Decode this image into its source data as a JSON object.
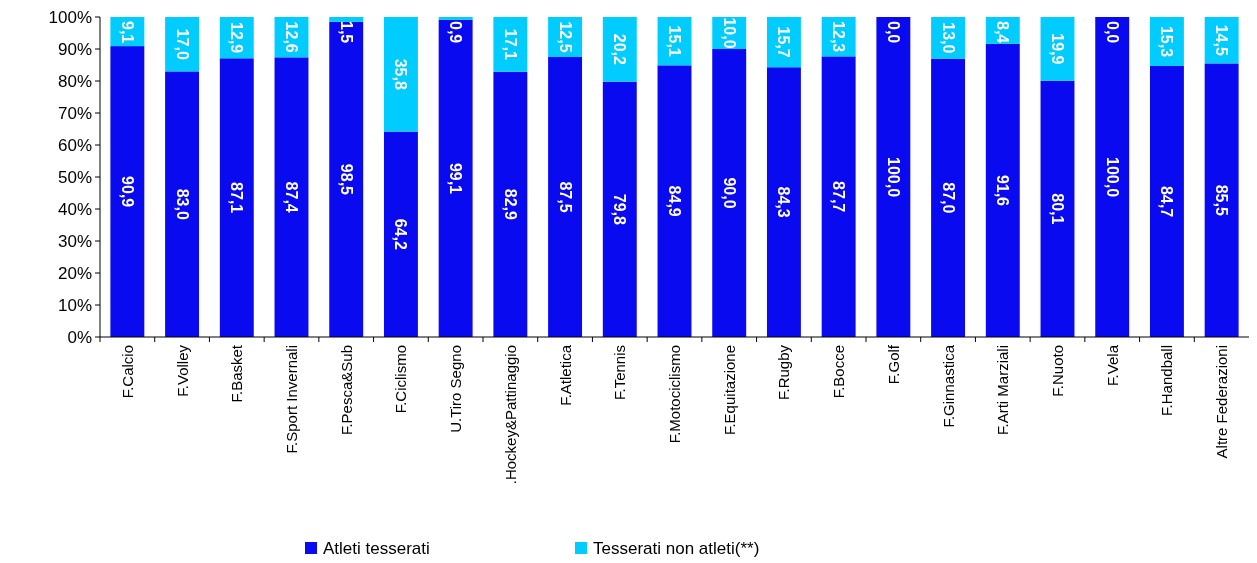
{
  "chart_data": {
    "type": "bar",
    "stacked": true,
    "legend": "bottom",
    "categories": [
      "F.Calcio",
      "F.Volley",
      "F.Basket",
      "F.Sport Invernali",
      "F.Pesca&Sub",
      "F.Ciclismo",
      "U.Tiro Segno",
      ".Hockey&Pattinaggio",
      "F.Atletica",
      "F.Tennis",
      "F.Motociclismo",
      "F.Equitazione",
      "F.Rugby",
      "F.Bocce",
      "F.Golf",
      "F.Ginnastica",
      "F.Arti Marziali",
      "F.Nuoto",
      "F.Vela",
      "F.Handball",
      "Altre Federazioni"
    ],
    "ylim": [
      0,
      100
    ],
    "yticks": [
      {
        "value": 0,
        "label": "0%"
      },
      {
        "value": 10,
        "label": "10%"
      },
      {
        "value": 20,
        "label": "20%"
      },
      {
        "value": 30,
        "label": "30%"
      },
      {
        "value": 40,
        "label": "40%"
      },
      {
        "value": 50,
        "label": "50%"
      },
      {
        "value": 60,
        "label": "60%"
      },
      {
        "value": 70,
        "label": "70%"
      },
      {
        "value": 80,
        "label": "80%"
      },
      {
        "value": 90,
        "label": "90%"
      },
      {
        "value": 100,
        "label": "100%"
      }
    ],
    "series": [
      {
        "name": "Atleti tesserati",
        "color": "#0a0af0",
        "values": [
          90.9,
          83.0,
          87.1,
          87.4,
          98.5,
          64.2,
          99.1,
          82.9,
          87.5,
          79.8,
          84.9,
          90.0,
          84.3,
          87.7,
          100.0,
          87.0,
          91.6,
          80.1,
          100.0,
          84.7,
          85.5
        ],
        "value_labels": [
          "90,9",
          "83,0",
          "87,1",
          "87,4",
          "98,5",
          "64,2",
          "99,1",
          "82,9",
          "87,5",
          "79,8",
          "84,9",
          "90,0",
          "84,3",
          "87,7",
          "100,0",
          "87,0",
          "91,6",
          "80,1",
          "100,0",
          "84,7",
          "85,5"
        ]
      },
      {
        "name": "Tesserati non atleti(**)",
        "color": "#00ccff",
        "values": [
          9.1,
          17.0,
          12.9,
          12.6,
          1.5,
          35.8,
          0.9,
          17.1,
          12.5,
          20.2,
          15.1,
          10.0,
          15.7,
          12.3,
          0.0,
          13.0,
          8.4,
          19.9,
          0.0,
          15.3,
          14.5
        ],
        "value_labels": [
          "9,1",
          "17,0",
          "12,9",
          "12,6",
          "1,5",
          "35,8",
          "0,9",
          "17,1",
          "12,5",
          "20,2",
          "15,1",
          "10,0",
          "15,7",
          "12,3",
          "0,0",
          "13,0",
          "8,4",
          "19,9",
          "0,0",
          "15,3",
          "14,5"
        ]
      }
    ]
  }
}
